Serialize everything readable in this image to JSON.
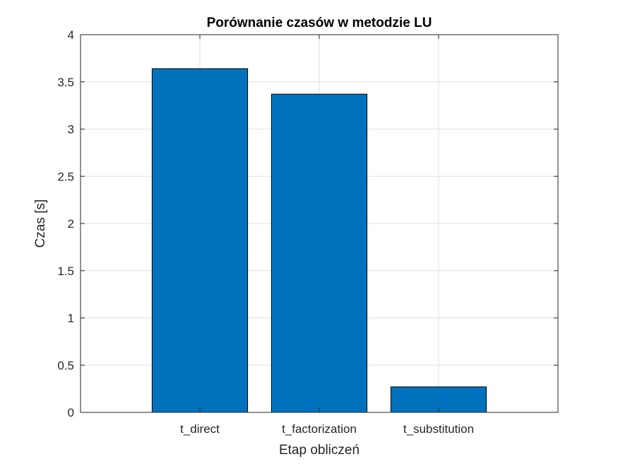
{
  "chart_data": {
    "type": "bar",
    "title": "Porównanie czasów w metodzie LU",
    "xlabel": "Etap obliczeń",
    "ylabel": "Czas [s]",
    "categories": [
      "t_direct",
      "t_factorization",
      "t_substitution"
    ],
    "values": [
      3.64,
      3.37,
      0.27
    ],
    "ylim": [
      0,
      4
    ],
    "yticks": [
      0,
      0.5,
      1,
      1.5,
      2,
      2.5,
      3,
      3.5,
      4
    ],
    "ytick_labels": [
      "0",
      "0.5",
      "1",
      "1.5",
      "2",
      "2.5",
      "3",
      "3.5",
      "4"
    ],
    "grid": true,
    "bar_color": "#0072BD"
  }
}
